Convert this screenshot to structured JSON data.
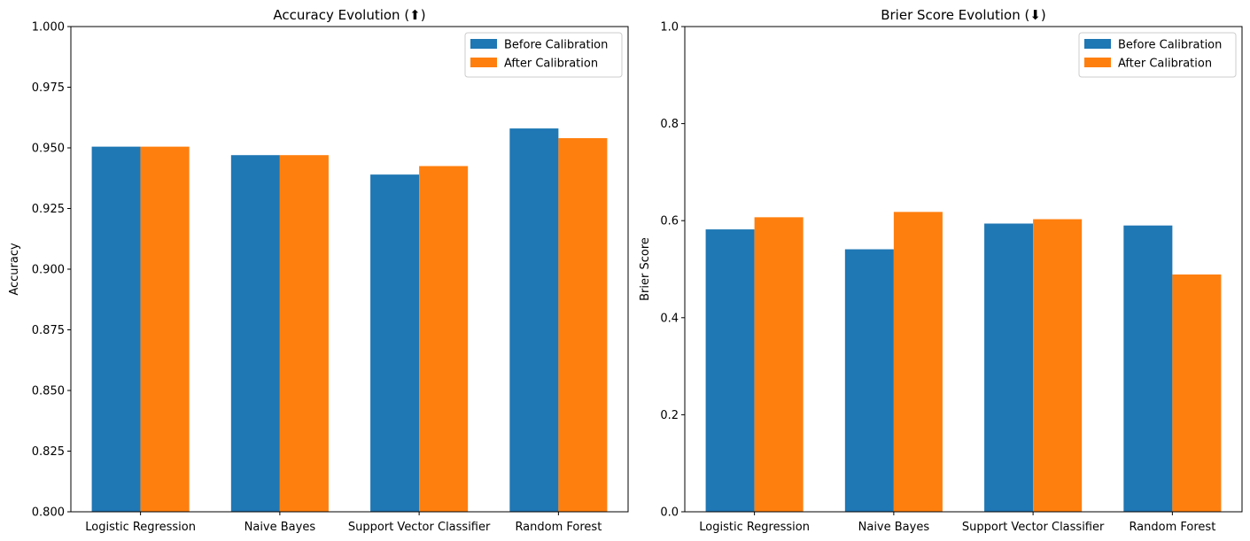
{
  "chart_data": [
    {
      "type": "bar",
      "title": "Accuracy Evolution (⬆)",
      "xlabel": "",
      "ylabel": "Accuracy",
      "categories": [
        "Logistic Regression",
        "Naive Bayes",
        "Support Vector Classifier",
        "Random Forest"
      ],
      "series": [
        {
          "name": "Before Calibration",
          "color": "#1f77b4",
          "values": [
            0.9505,
            0.947,
            0.939,
            0.958
          ]
        },
        {
          "name": "After Calibration",
          "color": "#ff7f0e",
          "values": [
            0.9505,
            0.947,
            0.9425,
            0.954
          ]
        }
      ],
      "ylim": [
        0.8,
        1.0
      ],
      "yticks": [
        0.8,
        0.825,
        0.85,
        0.875,
        0.9,
        0.925,
        0.95,
        0.975,
        1.0
      ],
      "ytick_labels": [
        "0.800",
        "0.825",
        "0.850",
        "0.875",
        "0.900",
        "0.925",
        "0.950",
        "0.975",
        "1.000"
      ],
      "grid": false,
      "legend": "top-right"
    },
    {
      "type": "bar",
      "title": "Brier Score Evolution  (⬇)",
      "xlabel": "",
      "ylabel": "Brier Score",
      "categories": [
        "Logistic Regression",
        "Naive Bayes",
        "Support Vector Classifier",
        "Random Forest"
      ],
      "series": [
        {
          "name": "Before Calibration",
          "color": "#1f77b4",
          "values": [
            0.582,
            0.541,
            0.594,
            0.59
          ]
        },
        {
          "name": "After Calibration",
          "color": "#ff7f0e",
          "values": [
            0.607,
            0.618,
            0.603,
            0.489
          ]
        }
      ],
      "ylim": [
        0.0,
        1.0
      ],
      "yticks": [
        0.0,
        0.2,
        0.4,
        0.6,
        0.8,
        1.0
      ],
      "ytick_labels": [
        "0.0",
        "0.2",
        "0.4",
        "0.6",
        "0.8",
        "1.0"
      ],
      "grid": false,
      "legend": "top-right"
    }
  ]
}
